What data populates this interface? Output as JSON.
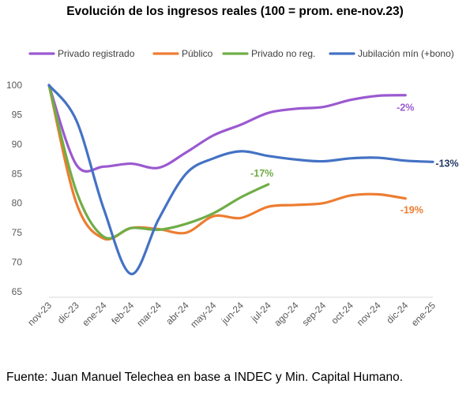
{
  "title": "Evolución de los ingresos reales (100 = prom. ene-nov.23)",
  "source": "Fuente: Juan Manuel Telechea en base a INDEC y Min. Capital Humano.",
  "chart_data": {
    "type": "line",
    "title": "Evolución de los ingresos reales (100 = prom. ene-nov.23)",
    "xlabel": "",
    "ylabel": "",
    "ylim": [
      65,
      100
    ],
    "yticks": [
      65,
      70,
      75,
      80,
      85,
      90,
      95,
      100
    ],
    "grid": false,
    "legend_position": "top",
    "categories": [
      "nov-23",
      "dic-23",
      "ene-24",
      "feb-24",
      "mar-24",
      "abr-24",
      "may-24",
      "jun-24",
      "jul-24",
      "ago-24",
      "sep-24",
      "oct-24",
      "nov-24",
      "dic-24",
      "ene-25"
    ],
    "series": [
      {
        "name": "Privado registrado",
        "color": "#9b59d0",
        "values": [
          100,
          86.5,
          86.2,
          86.7,
          86.0,
          88.6,
          91.5,
          93.3,
          95.3,
          96.0,
          96.3,
          97.5,
          98.2,
          98.3,
          null
        ],
        "end_label": "-2%"
      },
      {
        "name": "Público",
        "color": "#ed7d31",
        "values": [
          100,
          80.0,
          74.0,
          75.8,
          75.6,
          75.0,
          77.8,
          77.5,
          79.4,
          79.7,
          80.0,
          81.3,
          81.5,
          80.8,
          null
        ],
        "end_label": "-19%"
      },
      {
        "name": "Privado no reg.",
        "color": "#70ad47",
        "values": [
          100,
          82.0,
          74.3,
          75.8,
          75.5,
          76.5,
          78.3,
          81.0,
          83.2,
          null,
          null,
          null,
          null,
          null,
          null
        ],
        "end_label": "-17%"
      },
      {
        "name": "Jubilación mín (+bono)",
        "color": "#4472c4",
        "values": [
          100,
          94.0,
          79.0,
          68.0,
          77.3,
          85.0,
          87.6,
          88.8,
          88.0,
          87.4,
          87.1,
          87.6,
          87.7,
          87.2,
          87.0
        ],
        "end_label": "-13%"
      }
    ]
  }
}
